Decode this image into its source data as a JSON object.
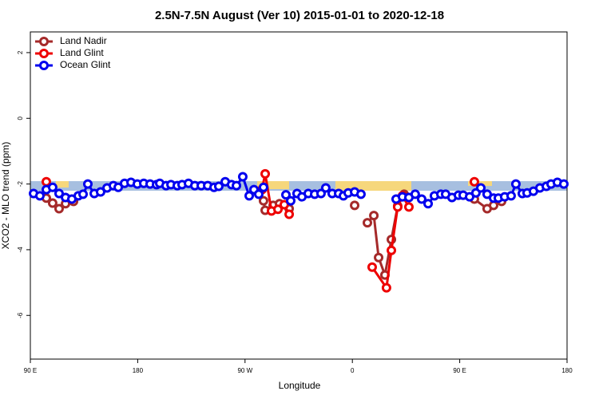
{
  "chart_data": {
    "type": "line",
    "title": "2.5N-7.5N August (Ver 10)   2015-01-01 to 2020-12-18",
    "x_label": "Longitude",
    "y_label": "XCO2 - MLO trend (ppm)",
    "xlim": [
      90,
      540
    ],
    "ylim": [
      -7.33,
      2.63
    ],
    "xticks": [
      {
        "value": 90,
        "label": "90 E"
      },
      180,
      {
        "value": 270,
        "label": "90 W"
      },
      {
        "value": 360,
        "label": "0"
      },
      {
        "value": 450,
        "label": "90 E"
      },
      {
        "value": 540,
        "label": "180"
      }
    ],
    "yticks": [
      2,
      0,
      -2,
      -4,
      -6
    ],
    "legend": "top-left",
    "series": [
      {
        "name": "Land Nadir",
        "color": "#a52a2a",
        "x": [
          103.4,
          108.7,
          114.1,
          119.5,
          126.2,
          null,
          285.5,
          286.9,
          293.6,
          298.9,
          307,
          null,
          361.9,
          null,
          372.6,
          378,
          382,
          387.3,
          392.7,
          398,
          403.4,
          null,
          462.3,
          473,
          478.4,
          485.1
        ],
        "values": [
          -2.43,
          -2.58,
          -2.75,
          -2.6,
          -2.53,
          null,
          -2.51,
          -2.8,
          -2.65,
          -2.6,
          -2.75,
          null,
          -2.65,
          null,
          -3.18,
          -2.96,
          -4.24,
          -4.77,
          -3.69,
          -2.67,
          -2.31,
          null,
          -2.46,
          -2.75,
          -2.65,
          -2.53
        ]
      },
      {
        "name": "Land Glint",
        "color": "#ee0000",
        "x": [
          103.4,
          null,
          284.2,
          286.9,
          292.2,
          297.6,
          302.9,
          307,
          null,
          376.6,
          388.6,
          392.7,
          398,
          402,
          407.4,
          null,
          462.3
        ],
        "values": [
          -1.93,
          null,
          -2.17,
          -1.69,
          -2.82,
          -2.77,
          -2.63,
          -2.92,
          null,
          -4.53,
          -5.16,
          -4.02,
          -2.7,
          -2.36,
          -2.7,
          null,
          -1.93
        ]
      },
      {
        "name": "Ocean Glint",
        "color": "#0000ee",
        "x": [
          92.7,
          98,
          103.4,
          108.7,
          114.1,
          119.5,
          124.8,
          130.2,
          134.2,
          138.2,
          143.6,
          148.9,
          154.3,
          159.6,
          163.7,
          169,
          174.4,
          179.7,
          185.1,
          190.4,
          195.8,
          198.5,
          203.8,
          207.9,
          213.2,
          217.2,
          222.6,
          227.9,
          233.3,
          238.7,
          244,
          248,
          253.4,
          258.7,
          262.8,
          268.1,
          273.5,
          277.5,
          281.5,
          285.5,
          null,
          304.3,
          308.3,
          313.6,
          317.7,
          323,
          328.4,
          333.7,
          337.7,
          343.1,
          348.5,
          352.5,
          356.5,
          361.9,
          367.2,
          null,
          396.7,
          402,
          407.4,
          412.7,
          418.1,
          423.5,
          428.8,
          434.2,
          438.2,
          443.5,
          448.9,
          452.9,
          458.3,
          463.6,
          467.7,
          473,
          478.4,
          482.4,
          487.7,
          493.1,
          497.1,
          502.5,
          506.5,
          511.8,
          517.2,
          522.6,
          526.6,
          531.9,
          537.3
        ],
        "values": [
          -2.29,
          -2.36,
          -2.17,
          -2.1,
          -2.29,
          -2.41,
          -2.46,
          -2.36,
          -2.31,
          -2.0,
          -2.29,
          -2.24,
          -2.12,
          -2.05,
          -2.1,
          -1.98,
          -1.95,
          -2.0,
          -1.98,
          -2.0,
          -2.02,
          -1.98,
          -2.05,
          -2.02,
          -2.05,
          -2.02,
          -1.98,
          -2.05,
          -2.05,
          -2.05,
          -2.1,
          -2.07,
          -1.93,
          -2.02,
          -2.05,
          -1.78,
          -2.36,
          -2.17,
          -2.31,
          -2.1,
          null,
          -2.33,
          -2.51,
          -2.29,
          -2.39,
          -2.29,
          -2.31,
          -2.29,
          -2.12,
          -2.29,
          -2.29,
          -2.36,
          -2.27,
          -2.24,
          -2.31,
          null,
          -2.46,
          -2.39,
          -2.41,
          -2.31,
          -2.46,
          -2.6,
          -2.36,
          -2.31,
          -2.31,
          -2.41,
          -2.34,
          -2.34,
          -2.39,
          -2.27,
          -2.12,
          -2.31,
          -2.43,
          -2.43,
          -2.39,
          -2.36,
          -2.0,
          -2.29,
          -2.27,
          -2.22,
          -2.12,
          -2.07,
          -2.0,
          -1.95,
          -2.0
        ]
      }
    ]
  }
}
